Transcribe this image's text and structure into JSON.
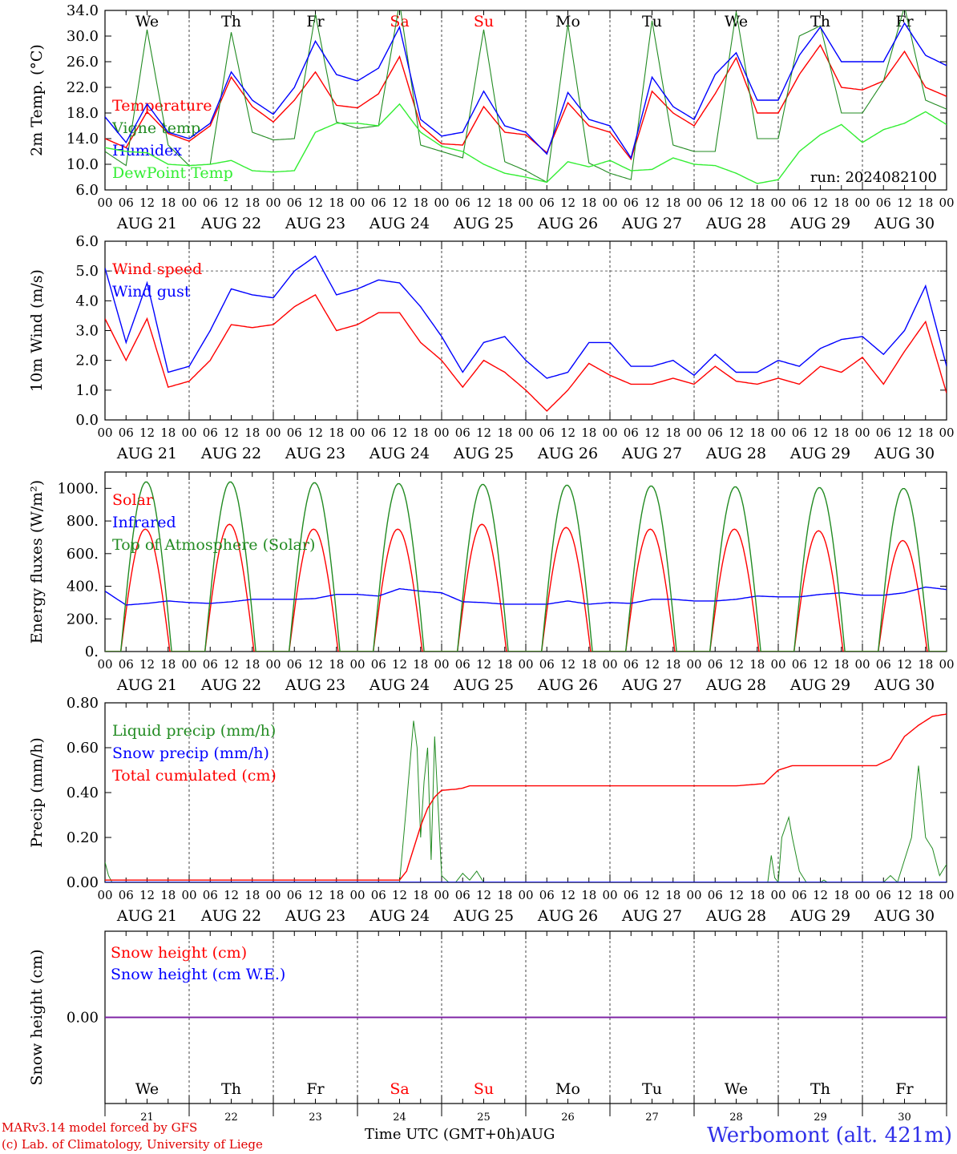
{
  "chart_data": [
    {
      "type": "line",
      "ylabel": "2m Temp. (°C)",
      "ylim": [
        6,
        34
      ],
      "yticks": [
        "6.0",
        "10.0",
        "14.0",
        "18.0",
        "22.0",
        "26.0",
        "30.0",
        "34.0"
      ],
      "annotation": "run: 2024082100",
      "series": [
        {
          "name": "Temperature",
          "color": "#ff0000",
          "x": [
            0,
            6,
            12,
            18,
            24,
            30,
            36,
            42,
            48,
            54,
            60,
            66,
            72,
            78,
            84,
            90,
            96,
            102,
            108,
            114,
            120,
            126,
            132,
            138,
            144,
            150,
            156,
            162,
            168,
            174,
            180,
            186,
            192,
            198,
            204,
            210,
            216,
            222,
            228,
            234,
            240
          ],
          "values": [
            14.0,
            12.6,
            18.2,
            14.8,
            13.6,
            16.0,
            23.6,
            19.0,
            16.6,
            20.0,
            24.4,
            19.2,
            18.8,
            21.0,
            26.8,
            16.0,
            13.2,
            13.0,
            19.0,
            15.0,
            14.6,
            11.8,
            19.6,
            16.0,
            15.0,
            10.8,
            21.4,
            18.0,
            16.0,
            21.0,
            26.6,
            18.0,
            18.0,
            24.0,
            28.6,
            22.0,
            21.6,
            23.0,
            27.6,
            22.0,
            20.6
          ]
        },
        {
          "name": "Vigne temp",
          "color": "#228b22",
          "x": [
            0,
            6,
            12,
            18,
            24,
            30,
            36,
            42,
            48,
            54,
            60,
            66,
            72,
            78,
            84,
            90,
            96,
            102,
            108,
            114,
            120,
            126,
            132,
            138,
            144,
            150,
            156,
            162,
            168,
            174,
            180,
            186,
            192,
            198,
            204,
            210,
            216,
            222,
            228,
            234,
            240
          ],
          "values": [
            12.0,
            9.8,
            31.0,
            13.0,
            9.8,
            10.0,
            30.6,
            15.0,
            13.8,
            14.0,
            33.4,
            16.6,
            15.6,
            16.0,
            35.2,
            13.0,
            12.0,
            11.0,
            31.0,
            10.4,
            9.0,
            7.2,
            31.8,
            10.2,
            8.6,
            7.6,
            32.4,
            13.0,
            12.0,
            12.0,
            33.8,
            14.0,
            14.0,
            30.0,
            31.6,
            18.0,
            18.0,
            23.0,
            34.6,
            20.0,
            18.6
          ]
        },
        {
          "name": "Humidex",
          "color": "#0000ff",
          "x": [
            0,
            6,
            12,
            18,
            24,
            30,
            36,
            42,
            48,
            54,
            60,
            66,
            72,
            78,
            84,
            90,
            96,
            102,
            108,
            114,
            120,
            126,
            132,
            138,
            144,
            150,
            156,
            162,
            168,
            174,
            180,
            186,
            192,
            198,
            204,
            210,
            216,
            222,
            228,
            234,
            240
          ],
          "values": [
            17.4,
            13.4,
            19.4,
            15.0,
            14.0,
            16.4,
            24.4,
            20.0,
            17.8,
            22.0,
            29.2,
            24.0,
            23.0,
            25.0,
            31.4,
            17.0,
            14.4,
            15.0,
            21.4,
            16.0,
            15.0,
            11.6,
            21.2,
            17.0,
            16.0,
            11.0,
            23.6,
            19.0,
            17.0,
            24.0,
            27.4,
            20.0,
            20.0,
            27.0,
            31.4,
            26.0,
            26.0,
            26.0,
            32.0,
            27.0,
            25.4
          ]
        },
        {
          "name": "DewPoint Temp",
          "color": "#33ee33",
          "x": [
            0,
            6,
            12,
            18,
            24,
            30,
            36,
            42,
            48,
            54,
            60,
            66,
            72,
            78,
            84,
            90,
            96,
            102,
            108,
            114,
            120,
            126,
            132,
            138,
            144,
            150,
            156,
            162,
            168,
            174,
            180,
            186,
            192,
            198,
            204,
            210,
            216,
            222,
            228,
            234,
            240
          ],
          "values": [
            12.6,
            12.0,
            11.8,
            10.0,
            9.8,
            10.0,
            10.6,
            9.0,
            8.8,
            9.0,
            15.0,
            16.4,
            16.4,
            16.0,
            19.4,
            15.0,
            12.8,
            12.0,
            10.0,
            8.6,
            8.0,
            7.2,
            10.4,
            9.6,
            10.6,
            9.0,
            9.2,
            11.0,
            10.0,
            9.8,
            8.6,
            7.0,
            7.6,
            12.0,
            14.6,
            16.2,
            13.4,
            15.4,
            16.4,
            18.2,
            16.2
          ]
        }
      ]
    },
    {
      "type": "line",
      "ylabel": "10m Wind (m/s)",
      "ylim": [
        0,
        6
      ],
      "yticks": [
        "0.0",
        "1.0",
        "2.0",
        "3.0",
        "4.0",
        "5.0",
        "6.0"
      ],
      "series": [
        {
          "name": "Wind speed",
          "color": "#ff0000",
          "x": [
            0,
            6,
            12,
            18,
            24,
            30,
            36,
            42,
            48,
            54,
            60,
            66,
            72,
            78,
            84,
            90,
            96,
            102,
            108,
            114,
            120,
            126,
            132,
            138,
            144,
            150,
            156,
            162,
            168,
            174,
            180,
            186,
            192,
            198,
            204,
            210,
            216,
            222,
            228,
            234,
            240
          ],
          "values": [
            3.4,
            2.0,
            3.4,
            1.1,
            1.3,
            2.0,
            3.2,
            3.1,
            3.2,
            3.8,
            4.2,
            3.0,
            3.2,
            3.6,
            3.6,
            2.6,
            2.0,
            1.1,
            2.0,
            1.6,
            1.0,
            0.3,
            1.0,
            1.9,
            1.5,
            1.2,
            1.2,
            1.4,
            1.2,
            1.8,
            1.3,
            1.2,
            1.4,
            1.2,
            1.8,
            1.6,
            2.1,
            1.2,
            2.3,
            3.3,
            0.9
          ]
        },
        {
          "name": "Wind gust",
          "color": "#0000ff",
          "x": [
            0,
            6,
            12,
            18,
            24,
            30,
            36,
            42,
            48,
            54,
            60,
            66,
            72,
            78,
            84,
            90,
            96,
            102,
            108,
            114,
            120,
            126,
            132,
            138,
            144,
            150,
            156,
            162,
            168,
            174,
            180,
            186,
            192,
            198,
            204,
            210,
            216,
            222,
            228,
            234,
            240
          ],
          "values": [
            5.1,
            2.6,
            4.6,
            1.6,
            1.8,
            3.0,
            4.4,
            4.2,
            4.1,
            5.0,
            5.5,
            4.2,
            4.4,
            4.7,
            4.6,
            3.8,
            2.8,
            1.6,
            2.6,
            2.8,
            2.0,
            1.4,
            1.6,
            2.6,
            2.6,
            1.8,
            1.8,
            2.0,
            1.5,
            2.2,
            1.6,
            1.6,
            2.0,
            1.8,
            2.4,
            2.7,
            2.8,
            2.2,
            3.0,
            4.5,
            1.8
          ]
        }
      ]
    },
    {
      "type": "line",
      "ylabel": "Energy fluxes (W/m²)",
      "ylim": [
        0,
        1100
      ],
      "yticks": [
        "0.",
        "200.",
        "400.",
        "600.",
        "800.",
        "1000."
      ],
      "series": [
        {
          "name": "Solar",
          "color": "#ff0000",
          "diurnal_peak_W_m2": [
            750,
            780,
            750,
            750,
            780,
            760,
            750,
            750,
            740,
            680
          ],
          "sunrise_hour_UTC": 4.5,
          "sunset_hour_UTC": 18.5
        },
        {
          "name": "Infrared",
          "color": "#0000ff",
          "x": [
            0,
            6,
            12,
            18,
            24,
            30,
            36,
            42,
            48,
            54,
            60,
            66,
            72,
            78,
            84,
            90,
            96,
            102,
            108,
            114,
            120,
            126,
            132,
            138,
            144,
            150,
            156,
            162,
            168,
            174,
            180,
            186,
            192,
            198,
            204,
            210,
            216,
            222,
            228,
            234,
            240
          ],
          "values": [
            370,
            285,
            295,
            310,
            300,
            295,
            305,
            320,
            320,
            320,
            325,
            350,
            350,
            340,
            385,
            370,
            360,
            305,
            300,
            290,
            290,
            290,
            310,
            290,
            300,
            295,
            320,
            320,
            310,
            310,
            320,
            340,
            335,
            335,
            350,
            360,
            345,
            345,
            360,
            395,
            380
          ]
        },
        {
          "name": "Top of Atmosphere (Solar)",
          "color": "#228b22",
          "diurnal_peak_W_m2": [
            1040,
            1040,
            1035,
            1030,
            1025,
            1020,
            1015,
            1010,
            1005,
            1000
          ],
          "sunrise_hour_UTC": 4.5,
          "sunset_hour_UTC": 19.0
        }
      ]
    },
    {
      "type": "line",
      "ylabel": "Precip (mm/h)",
      "ylim": [
        0,
        0.8
      ],
      "yticks": [
        "0.00",
        "0.20",
        "0.40",
        "0.60",
        "0.80"
      ],
      "series": [
        {
          "name": "Liquid precip (mm/h)",
          "color": "#228b22",
          "x": [
            0,
            1,
            2,
            72,
            84,
            86,
            88,
            89,
            90,
            91,
            92,
            93,
            94,
            96,
            98,
            100,
            102,
            104,
            106,
            108,
            110,
            120,
            180,
            189,
            190,
            191,
            192,
            193,
            195,
            196,
            198,
            200,
            203,
            204,
            205,
            206,
            208,
            210,
            212,
            214,
            216,
            222,
            224,
            226,
            228,
            230,
            232,
            234,
            236,
            238,
            240
          ],
          "values": [
            0.09,
            0.03,
            0.0,
            0.0,
            0.0,
            0.35,
            0.72,
            0.6,
            0.2,
            0.45,
            0.6,
            0.1,
            0.65,
            0.03,
            0.0,
            0.0,
            0.04,
            0.01,
            0.05,
            0.0,
            0.0,
            0.0,
            0.0,
            0.0,
            0.12,
            0.02,
            0.0,
            0.2,
            0.29,
            0.2,
            0.05,
            0.0,
            0.0,
            0.0,
            0.01,
            0.0,
            0.0,
            0.0,
            0.0,
            0.0,
            0.0,
            0.0,
            0.03,
            0.0,
            0.1,
            0.2,
            0.52,
            0.2,
            0.15,
            0.03,
            0.08
          ]
        },
        {
          "name": "Snow precip (mm/h)",
          "color": "#0000ff",
          "x": [
            0,
            240
          ],
          "values": [
            0,
            0
          ]
        },
        {
          "name": "Total cumulated (cm)",
          "color": "#ff0000",
          "x": [
            0,
            84,
            86,
            88,
            90,
            92,
            94,
            96,
            100,
            102,
            104,
            180,
            188,
            192,
            196,
            200,
            210,
            216,
            220,
            224,
            228,
            232,
            236,
            240
          ],
          "values": [
            0.01,
            0.01,
            0.05,
            0.15,
            0.25,
            0.33,
            0.38,
            0.41,
            0.415,
            0.42,
            0.43,
            0.43,
            0.44,
            0.5,
            0.52,
            0.52,
            0.52,
            0.52,
            0.52,
            0.55,
            0.65,
            0.7,
            0.74,
            0.75
          ]
        }
      ]
    },
    {
      "type": "line",
      "ylabel": "Snow height (cm)",
      "ylim": [
        -1,
        1
      ],
      "yticks": [
        "0.00"
      ],
      "series": [
        {
          "name": "Snow height (cm)",
          "color": "#ff0000",
          "x": [
            0,
            240
          ],
          "values": [
            0,
            0
          ]
        },
        {
          "name": "Snow height (cm W.E.)",
          "color": "#0000ff",
          "x": [
            0,
            240
          ],
          "values": [
            0,
            0
          ]
        }
      ]
    }
  ],
  "x_axis": {
    "hour_ticks": [
      "00",
      "06",
      "12",
      "18"
    ],
    "end_tick": "00",
    "dates": [
      "AUG 21",
      "AUG 22",
      "AUG 23",
      "AUG 24",
      "AUG 25",
      "AUG 26",
      "AUG 27",
      "AUG 28",
      "AUG 29",
      "AUG 30"
    ],
    "weekdays": [
      "We",
      "Th",
      "Fr",
      "Sa",
      "Su",
      "Mo",
      "Tu",
      "We",
      "Th",
      "Fr"
    ],
    "weekend_color": "#ff0000",
    "day_numbers": [
      "21",
      "22",
      "23",
      "24",
      "25",
      "26",
      "27",
      "28",
      "29",
      "30"
    ],
    "bottom_title": "Time UTC (GMT+0h)AUG"
  },
  "credits": {
    "line1": "MARv3.14 model forced by GFS",
    "line2": "(c) Lab. of Climatology, University of Liege"
  },
  "station": "Werbomont (alt. 421m)"
}
